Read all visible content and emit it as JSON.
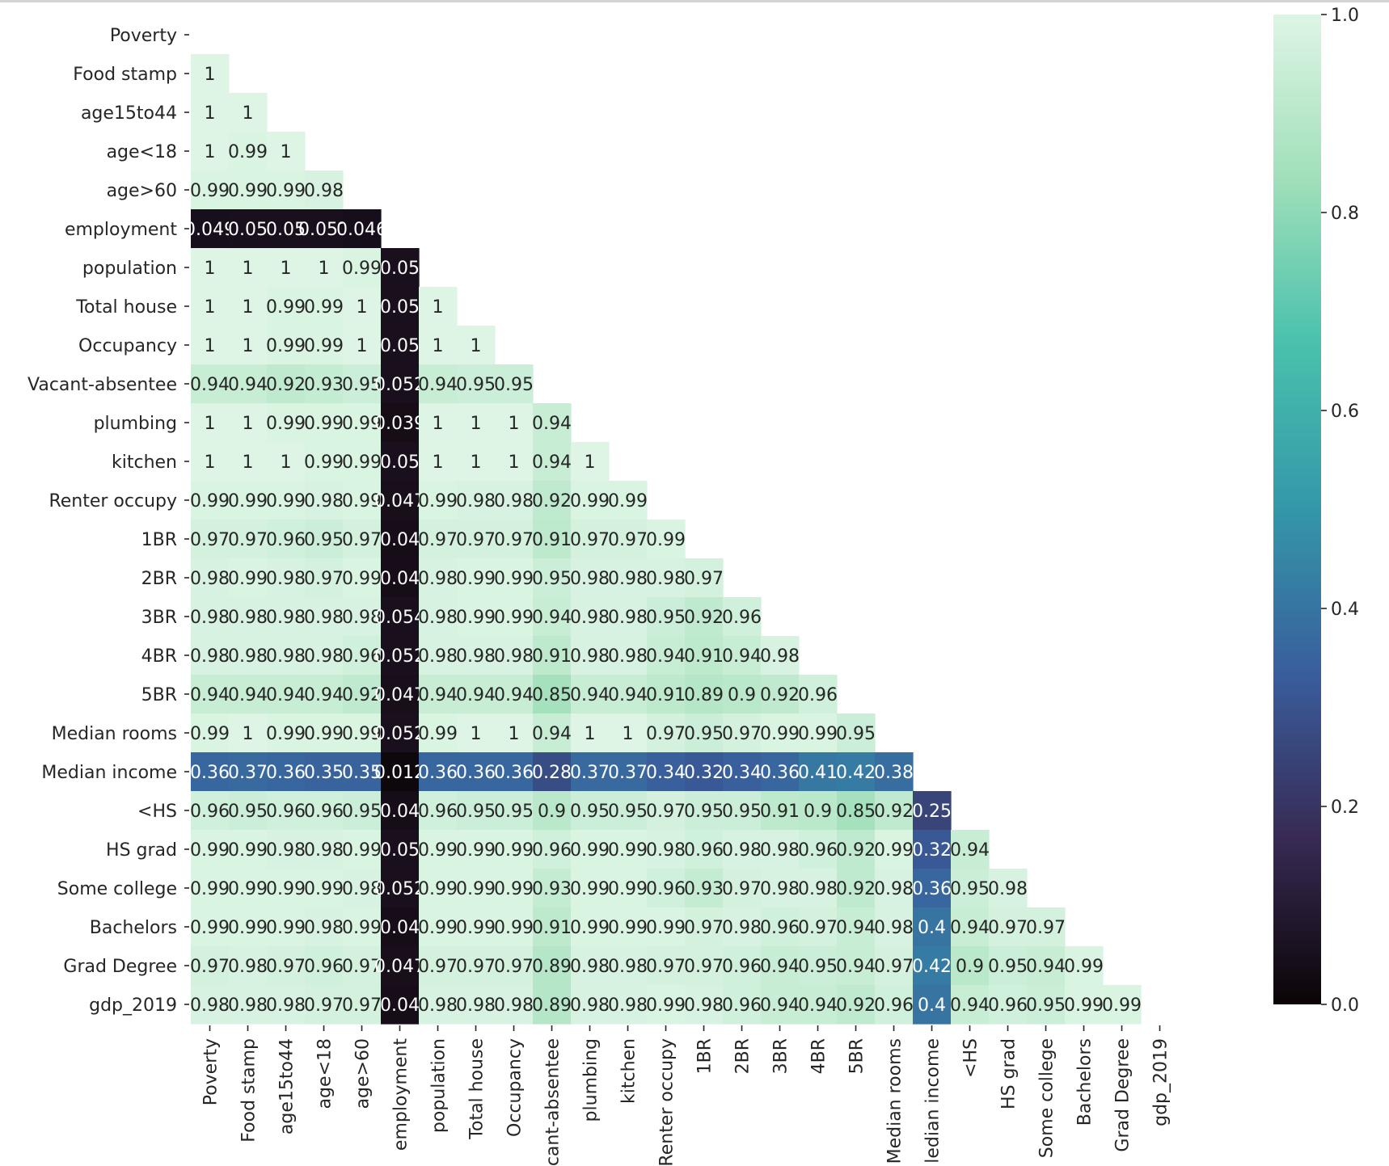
{
  "chart_data": {
    "type": "heatmap",
    "title": "",
    "xlabel": "",
    "ylabel": "",
    "mask": "upper-triangle-including-diagonal",
    "labels": [
      "Poverty",
      "Food stamp",
      "age15to44",
      "age<18",
      "age>60",
      "employment",
      "population",
      "Total house",
      "Occupancy",
      "Vacant-absentee",
      "plumbing",
      "kitchen",
      "Renter occupy",
      "1BR",
      "2BR",
      "3BR",
      "4BR",
      "5BR",
      "Median rooms",
      "Median income",
      "<HS",
      "HS grad",
      "Some college",
      "Bachelors",
      "Grad Degree",
      "gdp_2019"
    ],
    "x_tick_labels": [
      "Poverty",
      "Food stamp",
      "age15to44",
      "age<18",
      "age>60",
      "employment",
      "population",
      "Total house",
      "Occupancy",
      "cant-absentee",
      "plumbing",
      "kitchen",
      "Renter occupy",
      "1BR",
      "2BR",
      "3BR",
      "4BR",
      "5BR",
      "Median rooms",
      "ledian income",
      "<HS",
      "HS grad",
      "Some college",
      "Bachelors",
      "Grad Degree",
      "gdp_2019"
    ],
    "values": [
      [],
      [
        1.0
      ],
      [
        1.0,
        1.0
      ],
      [
        1.0,
        0.99,
        1.0
      ],
      [
        0.99,
        0.99,
        0.99,
        0.98
      ],
      [
        0.049,
        0.05,
        0.05,
        0.05,
        0.046
      ],
      [
        1.0,
        1.0,
        1.0,
        1.0,
        0.99,
        0.05
      ],
      [
        1.0,
        1.0,
        0.99,
        0.99,
        1.0,
        0.05,
        1.0
      ],
      [
        1.0,
        1.0,
        0.99,
        0.99,
        1.0,
        0.05,
        1.0,
        1.0
      ],
      [
        0.94,
        0.94,
        0.92,
        0.93,
        0.95,
        0.05,
        0.94,
        0.95,
        0.95
      ],
      [
        1.0,
        1.0,
        0.99,
        0.99,
        0.99,
        0.039,
        1.0,
        1.0,
        1.0,
        0.94
      ],
      [
        1.0,
        1.0,
        1.0,
        0.99,
        0.99,
        0.05,
        1.0,
        1.0,
        1.0,
        0.94,
        1.0
      ],
      [
        0.99,
        0.99,
        0.99,
        0.98,
        0.99,
        0.047,
        0.99,
        0.98,
        0.98,
        0.92,
        0.99,
        0.99
      ],
      [
        0.97,
        0.97,
        0.96,
        0.95,
        0.97,
        0.04,
        0.97,
        0.97,
        0.97,
        0.91,
        0.97,
        0.97,
        0.99
      ],
      [
        0.98,
        0.99,
        0.98,
        0.97,
        0.99,
        0.04,
        0.98,
        0.99,
        0.99,
        0.95,
        0.98,
        0.98,
        0.98,
        0.97
      ],
      [
        0.98,
        0.98,
        0.98,
        0.98,
        0.98,
        0.05,
        0.98,
        0.99,
        0.99,
        0.94,
        0.98,
        0.98,
        0.95,
        0.92,
        0.96
      ],
      [
        0.98,
        0.98,
        0.98,
        0.98,
        0.96,
        0.05,
        0.98,
        0.98,
        0.98,
        0.91,
        0.98,
        0.98,
        0.94,
        0.91,
        0.94,
        0.98
      ],
      [
        0.94,
        0.94,
        0.94,
        0.94,
        0.92,
        0.047,
        0.94,
        0.94,
        0.94,
        0.85,
        0.94,
        0.94,
        0.91,
        0.89,
        0.9,
        0.92,
        0.96
      ],
      [
        0.99,
        1.0,
        0.99,
        0.99,
        0.99,
        0.05,
        0.99,
        1.0,
        1.0,
        0.94,
        1.0,
        1.0,
        0.97,
        0.95,
        0.97,
        0.99,
        0.99,
        0.95
      ],
      [
        0.36,
        0.37,
        0.36,
        0.35,
        0.35,
        0.012,
        0.36,
        0.36,
        0.36,
        0.28,
        0.37,
        0.37,
        0.34,
        0.32,
        0.34,
        0.36,
        0.41,
        0.42,
        0.38
      ],
      [
        0.96,
        0.95,
        0.96,
        0.96,
        0.95,
        0.04,
        0.96,
        0.95,
        0.95,
        0.9,
        0.95,
        0.95,
        0.97,
        0.95,
        0.95,
        0.91,
        0.9,
        0.85,
        0.92,
        0.25
      ],
      [
        0.99,
        0.99,
        0.98,
        0.98,
        0.99,
        0.05,
        0.99,
        0.99,
        0.99,
        0.96,
        0.99,
        0.99,
        0.98,
        0.96,
        0.98,
        0.98,
        0.96,
        0.92,
        0.99,
        0.32,
        0.94
      ],
      [
        0.99,
        0.99,
        0.99,
        0.99,
        0.98,
        0.05,
        0.99,
        0.99,
        0.99,
        0.93,
        0.99,
        0.99,
        0.96,
        0.93,
        0.97,
        0.98,
        0.98,
        0.92,
        0.98,
        0.36,
        0.95,
        0.98
      ],
      [
        0.99,
        0.99,
        0.99,
        0.98,
        0.99,
        0.04,
        0.99,
        0.99,
        0.99,
        0.91,
        0.99,
        0.99,
        0.99,
        0.97,
        0.98,
        0.96,
        0.97,
        0.94,
        0.98,
        0.4,
        0.94,
        0.97,
        0.97
      ],
      [
        0.97,
        0.98,
        0.97,
        0.96,
        0.97,
        0.047,
        0.97,
        0.97,
        0.97,
        0.89,
        0.98,
        0.98,
        0.97,
        0.97,
        0.96,
        0.94,
        0.95,
        0.94,
        0.97,
        0.42,
        0.9,
        0.95,
        0.94,
        0.99
      ],
      [
        0.98,
        0.98,
        0.98,
        0.97,
        0.97,
        0.04,
        0.98,
        0.98,
        0.98,
        0.89,
        0.98,
        0.98,
        0.99,
        0.98,
        0.96,
        0.94,
        0.94,
        0.92,
        0.96,
        0.4,
        0.94,
        0.96,
        0.95,
        0.99,
        0.99
      ]
    ],
    "display_labels": [
      [],
      [
        "1"
      ],
      [
        "1",
        "1"
      ],
      [
        "1",
        "0.99",
        "1"
      ],
      [
        "0.99",
        "0.99",
        "0.99",
        "0.98"
      ],
      [
        "0.049",
        "0.05",
        "0.05",
        "0.051",
        "0.046"
      ],
      [
        "1",
        "1",
        "1",
        "1",
        "0.99",
        "0.05"
      ],
      [
        "1",
        "1",
        "0.99",
        "0.99",
        "1",
        "0.05",
        "1"
      ],
      [
        "1",
        "1",
        "0.99",
        "0.99",
        "1",
        "0.05",
        "1",
        "1"
      ],
      [
        "0.94",
        "0.94",
        "0.92",
        "0.93",
        "0.95",
        "0.052",
        "0.94",
        "0.95",
        "0.95"
      ],
      [
        "1",
        "1",
        "0.99",
        "0.99",
        "0.99",
        "0.039",
        "1",
        "1",
        "1",
        "0.94"
      ],
      [
        "1",
        "1",
        "1",
        "0.99",
        "0.99",
        "0.05",
        "1",
        "1",
        "1",
        "0.94",
        "1"
      ],
      [
        "0.99",
        "0.99",
        "0.99",
        "0.98",
        "0.99",
        "0.047",
        "0.99",
        "0.98",
        "0.98",
        "0.92",
        "0.99",
        "0.99"
      ],
      [
        "0.97",
        "0.97",
        "0.96",
        "0.95",
        "0.97",
        "0.04",
        "0.97",
        "0.97",
        "0.97",
        "0.91",
        "0.97",
        "0.97",
        "0.99"
      ],
      [
        "0.98",
        "0.99",
        "0.98",
        "0.97",
        "0.99",
        "0.04",
        "0.98",
        "0.99",
        "0.99",
        "0.95",
        "0.98",
        "0.98",
        "0.98",
        "0.97"
      ],
      [
        "0.98",
        "0.98",
        "0.98",
        "0.98",
        "0.98",
        "0.054",
        "0.98",
        "0.99",
        "0.99",
        "0.94",
        "0.98",
        "0.98",
        "0.95",
        "0.92",
        "0.96"
      ],
      [
        "0.98",
        "0.98",
        "0.98",
        "0.98",
        "0.96",
        "0.052",
        "0.98",
        "0.98",
        "0.98",
        "0.91",
        "0.98",
        "0.98",
        "0.94",
        "0.91",
        "0.94",
        "0.98"
      ],
      [
        "0.94",
        "0.94",
        "0.94",
        "0.94",
        "0.92",
        "0.047",
        "0.94",
        "0.94",
        "0.94",
        "0.85",
        "0.94",
        "0.94",
        "0.91",
        "0.89",
        "0.9",
        "0.92",
        "0.96"
      ],
      [
        "0.99",
        "1",
        "0.99",
        "0.99",
        "0.99",
        "0.052",
        "0.99",
        "1",
        "1",
        "0.94",
        "1",
        "1",
        "0.97",
        "0.95",
        "0.97",
        "0.99",
        "0.99",
        "0.95"
      ],
      [
        "0.36",
        "0.37",
        "0.36",
        "0.35",
        "0.35",
        "0.012",
        "0.36",
        "0.36",
        "0.36",
        "0.28",
        "0.37",
        "0.37",
        "0.34",
        "0.32",
        "0.34",
        "0.36",
        "0.41",
        "0.42",
        "0.38"
      ],
      [
        "0.96",
        "0.95",
        "0.96",
        "0.96",
        "0.95",
        "0.04",
        "0.96",
        "0.95",
        "0.95",
        "0.9",
        "0.95",
        "0.95",
        "0.97",
        "0.95",
        "0.95",
        "0.91",
        "0.9",
        "0.85",
        "0.92",
        "0.25"
      ],
      [
        "0.99",
        "0.99",
        "0.98",
        "0.98",
        "0.99",
        "0.05",
        "0.99",
        "0.99",
        "0.99",
        "0.96",
        "0.99",
        "0.99",
        "0.98",
        "0.96",
        "0.98",
        "0.98",
        "0.96",
        "0.92",
        "0.99",
        "0.32",
        "0.94"
      ],
      [
        "0.99",
        "0.99",
        "0.99",
        "0.99",
        "0.98",
        "0.052",
        "0.99",
        "0.99",
        "0.99",
        "0.93",
        "0.99",
        "0.99",
        "0.96",
        "0.93",
        "0.97",
        "0.98",
        "0.98",
        "0.92",
        "0.98",
        "0.36",
        "0.95",
        "0.98"
      ],
      [
        "0.99",
        "0.99",
        "0.99",
        "0.98",
        "0.99",
        "0.04",
        "0.99",
        "0.99",
        "0.99",
        "0.91",
        "0.99",
        "0.99",
        "0.99",
        "0.97",
        "0.98",
        "0.96",
        "0.97",
        "0.94",
        "0.98",
        "0.4",
        "0.94",
        "0.97",
        "0.97"
      ],
      [
        "0.97",
        "0.98",
        "0.97",
        "0.96",
        "0.97",
        "0.047",
        "0.97",
        "0.97",
        "0.97",
        "0.89",
        "0.98",
        "0.98",
        "0.97",
        "0.97",
        "0.96",
        "0.94",
        "0.95",
        "0.94",
        "0.97",
        "0.42",
        "0.9",
        "0.95",
        "0.94",
        "0.99"
      ],
      [
        "0.98",
        "0.98",
        "0.98",
        "0.97",
        "0.97",
        "0.04",
        "0.98",
        "0.98",
        "0.98",
        "0.89",
        "0.98",
        "0.98",
        "0.99",
        "0.98",
        "0.96",
        "0.94",
        "0.94",
        "0.92",
        "0.96",
        "0.4",
        "0.94",
        "0.96",
        "0.95",
        "0.99",
        "0.99"
      ]
    ],
    "colorbar": {
      "range": [
        0.0,
        1.0
      ],
      "ticks": [
        "0.0",
        "0.2",
        "0.4",
        "0.6",
        "0.8",
        "1.0"
      ],
      "colormap": "mako",
      "stops": [
        "#0b0405",
        "#382a54",
        "#395d9c",
        "#3497a9",
        "#49c1ad",
        "#a0dfb9",
        "#def5e5"
      ]
    },
    "cell_text_light": "#ffffff",
    "cell_text_dark": "#262626",
    "axis_text": "#262626"
  }
}
